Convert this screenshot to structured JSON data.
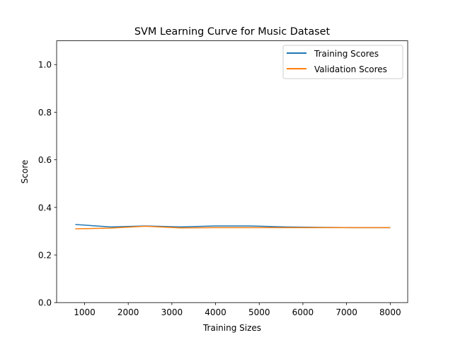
{
  "chart_data": {
    "type": "line",
    "title": "SVM Learning Curve for Music Dataset",
    "xlabel": "Training Sizes",
    "ylabel": "Score",
    "xlim": [
      360,
      8400
    ],
    "ylim": [
      0.0,
      1.1
    ],
    "xticks": [
      1000,
      2000,
      3000,
      4000,
      5000,
      6000,
      7000,
      8000
    ],
    "xtick_labels": [
      "1000",
      "2000",
      "3000",
      "4000",
      "5000",
      "6000",
      "7000",
      "8000"
    ],
    "yticks": [
      0.0,
      0.2,
      0.4,
      0.6,
      0.8,
      1.0
    ],
    "ytick_labels": [
      "0.0",
      "0.2",
      "0.4",
      "0.6",
      "0.8",
      "1.0"
    ],
    "grid": false,
    "legend_position": "top-right",
    "x": [
      799,
      1598,
      2397,
      3196,
      3995,
      4794,
      5593,
      6392,
      7191,
      7990
    ],
    "series": [
      {
        "name": "Training Scores",
        "color": "#1f77b4",
        "values": [
          0.328,
          0.318,
          0.322,
          0.318,
          0.322,
          0.322,
          0.318,
          0.316,
          0.315,
          0.315
        ]
      },
      {
        "name": "Validation Scores",
        "color": "#ff7f0e",
        "values": [
          0.31,
          0.313,
          0.321,
          0.314,
          0.315,
          0.315,
          0.315,
          0.315,
          0.315,
          0.315
        ]
      }
    ]
  }
}
